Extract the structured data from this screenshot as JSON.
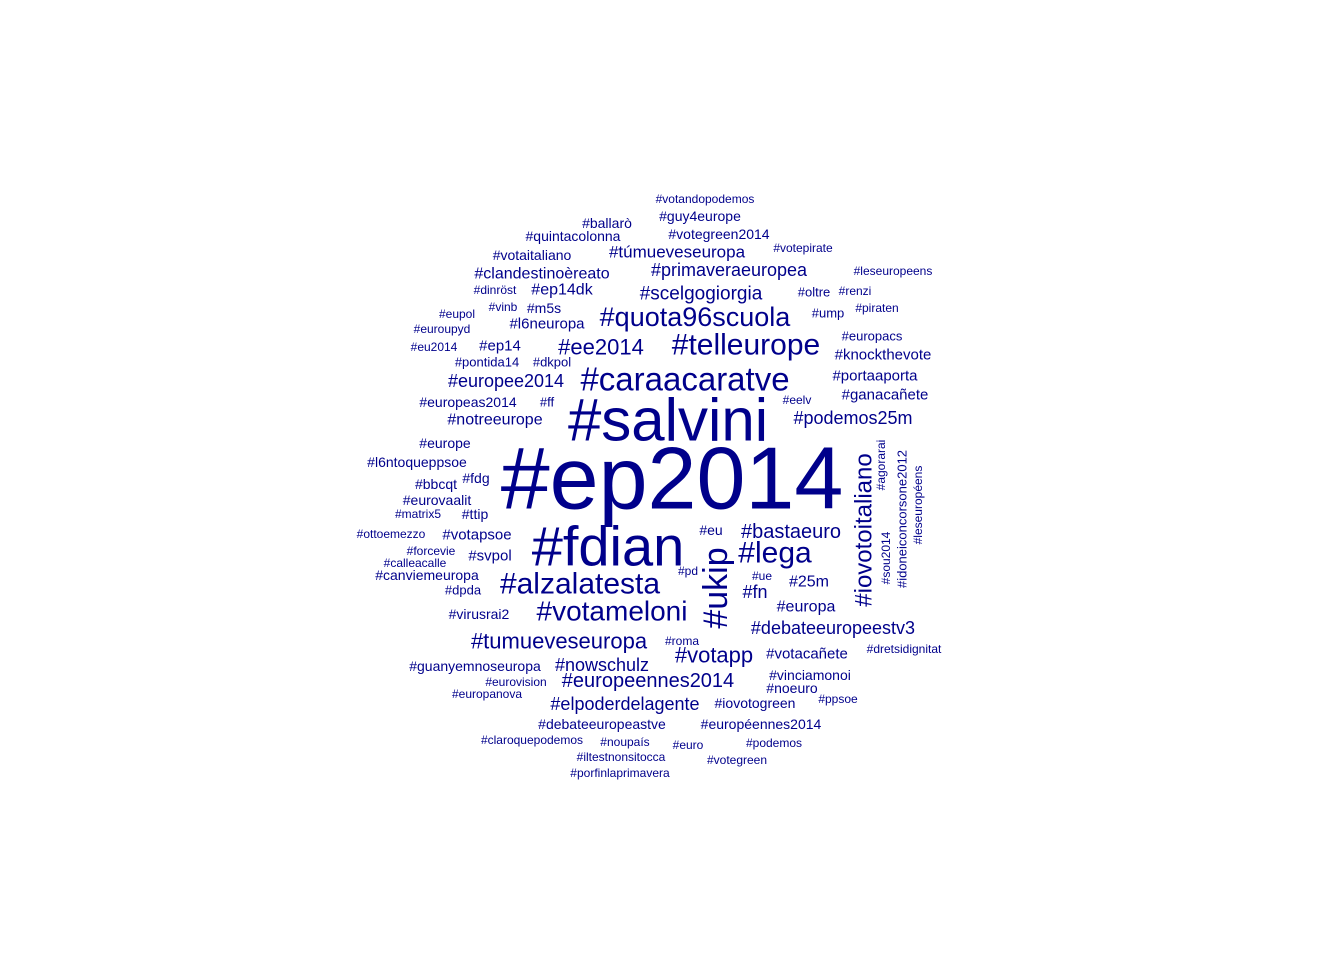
{
  "cloud": {
    "text_color": "#00008B",
    "words": [
      "#ep2014",
      "#salvini",
      "#fdian",
      "#caraacaratve",
      "#telleurope",
      "#quota96scuola",
      "#alzalatesta",
      "#votameloni",
      "#ukip",
      "#lega",
      "#iovotoitaliano",
      "#tumueveseuropa",
      "#votapp",
      "#europeennes2014",
      "#debateeuropeestv3",
      "#ee2014",
      "#europee2014",
      "#bastaeuro",
      "#podemos25m",
      "#primaveraeuropea",
      "#scelgogiorgia",
      "#elpoderdelagente",
      "#notreeurope",
      "#túmueveseuropa",
      "#clandestinoèreato",
      "#ep14dk",
      "#nowschulz",
      "#knockthevote",
      "#portaaporta",
      "#ganacañete",
      "#fn",
      "#25m",
      "#europa",
      "#votacañete",
      "#l6neuropa",
      "#ep14",
      "#votapsoe",
      "#svpol",
      "#canviemeuropa",
      "#guanyemnoseuropa",
      "#votegreen2014",
      "#guy4europe",
      "#ballarò",
      "#quintacolonna",
      "#votaitaliano",
      "#europeas2014",
      "#l6ntoqueppsoe",
      "#europe",
      "#eurovaalit",
      "#debateeuropeastve",
      "#européennes2014",
      "#vinciamonoi",
      "#iovotogreen",
      "#noeuro",
      "#idoneiconcorsone2012",
      "#votandopodemos",
      "#votepirate",
      "#leseuropeens",
      "#oltre",
      "#renzi",
      "#piraten",
      "#ump",
      "#europacs",
      "#eelv",
      "#agorarai",
      "#sou2014",
      "#leseuropéens",
      "#dinröst",
      "#vinb",
      "#m5s",
      "#eupol",
      "#euroupyd",
      "#eu2014",
      "#pontida14",
      "#dkpol",
      "#ff",
      "#fdg",
      "#bbcqt",
      "#matrix5",
      "#ttip",
      "#ottoemezzo",
      "#forcevie",
      "#calleacalle",
      "#dpda",
      "#virusrai2",
      "#eu",
      "#pd",
      "#ue",
      "#roma",
      "#dretsidignitat",
      "#eurovision",
      "#europanova",
      "#ppsoe",
      "#claroquepodemos",
      "#noupaís",
      "#euro",
      "#podemos",
      "#iltestnonsitocca",
      "#votegreen",
      "#porfinlaprimavera"
    ]
  }
}
